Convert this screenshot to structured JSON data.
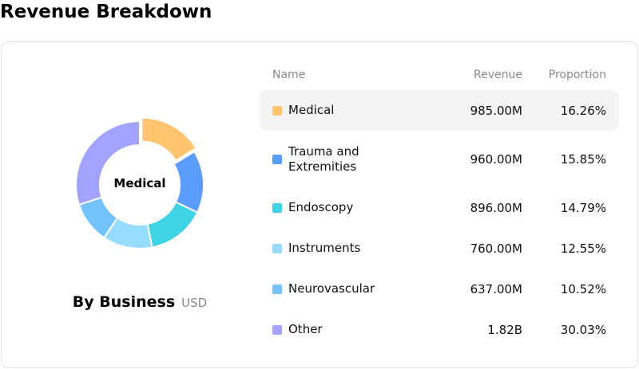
{
  "page": {
    "title": "Revenue Breakdown"
  },
  "chart": {
    "center_label": "Medical",
    "caption_title": "By Business",
    "caption_unit": "USD"
  },
  "table": {
    "headers": {
      "name": "Name",
      "revenue": "Revenue",
      "proportion": "Proportion"
    },
    "rows": [
      {
        "name": "Medical",
        "revenue": "985.00M",
        "proportion": "16.26%",
        "color": "#ffc56e",
        "active": true
      },
      {
        "name": "Trauma and Extremities",
        "revenue": "960.00M",
        "proportion": "15.85%",
        "color": "#5b9cff",
        "active": false
      },
      {
        "name": "Endoscopy",
        "revenue": "896.00M",
        "proportion": "14.79%",
        "color": "#3fd4e5",
        "active": false
      },
      {
        "name": "Instruments",
        "revenue": "760.00M",
        "proportion": "12.55%",
        "color": "#96dcff",
        "active": false
      },
      {
        "name": "Neurovascular",
        "revenue": "637.00M",
        "proportion": "10.52%",
        "color": "#72c3ff",
        "active": false
      },
      {
        "name": "Other",
        "revenue": "1.82B",
        "proportion": "30.03%",
        "color": "#a2a3ff",
        "active": false
      }
    ]
  },
  "chart_data": {
    "type": "pie",
    "categories": [
      "Medical",
      "Trauma and Extremities",
      "Endoscopy",
      "Instruments",
      "Neurovascular",
      "Other"
    ],
    "values": [
      16.26,
      15.85,
      14.79,
      12.55,
      10.52,
      30.03
    ],
    "colors": [
      "#ffc56e",
      "#5b9cff",
      "#3fd4e5",
      "#96dcff",
      "#72c3ff",
      "#a2a3ff"
    ],
    "highlighted": "Medical",
    "donut": true
  }
}
